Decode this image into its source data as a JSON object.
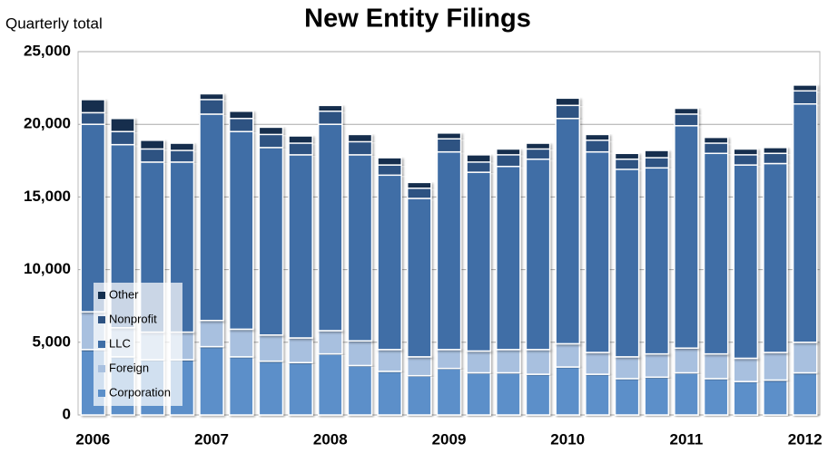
{
  "chart_data": {
    "type": "stacked_bar",
    "title": "New Entity Filings",
    "y_label": "Quarterly total",
    "categories": [
      "2006",
      null,
      null,
      null,
      "2007",
      null,
      null,
      null,
      "2008",
      null,
      null,
      null,
      "2009",
      null,
      null,
      null,
      "2010",
      null,
      null,
      null,
      "2011",
      null,
      null,
      null,
      "2012"
    ],
    "series": [
      {
        "name": "Corporation",
        "color": "#5b8fc9",
        "values": [
          4500,
          4000,
          3800,
          3800,
          4700,
          4000,
          3700,
          3600,
          4200,
          3400,
          3000,
          2700,
          3200,
          2900,
          2900,
          2800,
          3300,
          2800,
          2500,
          2600,
          2900,
          2500,
          2300,
          2400,
          2900
        ]
      },
      {
        "name": "Foreign",
        "color": "#a8c0df",
        "values": [
          2600,
          2000,
          1900,
          1900,
          1800,
          1900,
          1800,
          1700,
          1600,
          1700,
          1500,
          1300,
          1300,
          1500,
          1600,
          1700,
          1600,
          1500,
          1500,
          1600,
          1700,
          1700,
          1600,
          1900,
          2100
        ]
      },
      {
        "name": "LLC",
        "color": "#3f6ea6",
        "values": [
          12900,
          12600,
          11700,
          11700,
          14200,
          13600,
          12900,
          12600,
          14200,
          12800,
          12000,
          10900,
          13600,
          12300,
          12600,
          13100,
          15500,
          13800,
          12900,
          12800,
          15300,
          13800,
          13300,
          13000,
          16400
        ]
      },
      {
        "name": "Nonprofit",
        "color": "#2d5282",
        "values": [
          800,
          900,
          900,
          800,
          1000,
          900,
          900,
          800,
          900,
          900,
          700,
          700,
          900,
          700,
          800,
          700,
          900,
          800,
          700,
          700,
          800,
          700,
          700,
          700,
          900
        ]
      },
      {
        "name": "Other",
        "color": "#142f4e",
        "values": [
          900,
          900,
          600,
          500,
          400,
          500,
          500,
          500,
          400,
          500,
          500,
          400,
          400,
          500,
          400,
          400,
          500,
          400,
          400,
          500,
          400,
          400,
          400,
          400,
          400
        ]
      }
    ],
    "ylim": [
      0,
      25000
    ],
    "yticks": [
      0,
      {
        "value": 5000,
        "label": "5,000"
      },
      {
        "value": 10000,
        "label": "10,000"
      },
      {
        "value": 15000,
        "label": "15,000"
      },
      {
        "value": 20000,
        "label": "20,000"
      },
      {
        "value": 25000,
        "label": "25,000"
      }
    ],
    "grid": true,
    "legend_position": "lower left"
  }
}
